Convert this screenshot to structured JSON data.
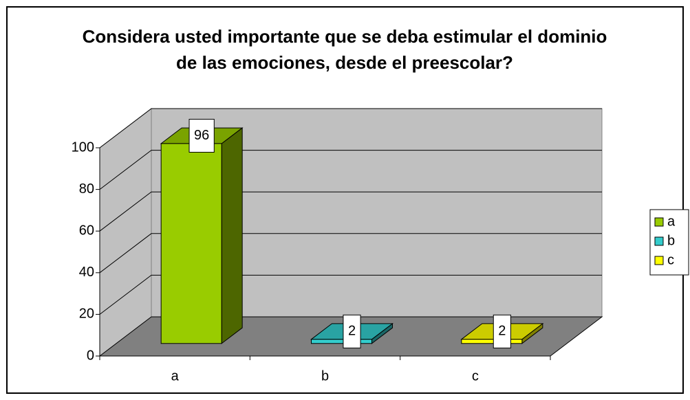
{
  "chart_data": {
    "type": "bar3d",
    "title": "Considera usted importante que se deba estimular el dominio de las emociones, desde el preescolar?",
    "categories": [
      "a",
      "b",
      "c"
    ],
    "values": [
      96,
      2,
      2
    ],
    "colors": [
      "#99cc00",
      "#33cccc",
      "#ffff00"
    ],
    "ylim": [
      0,
      100
    ],
    "yticks": [
      0,
      20,
      40,
      60,
      80,
      100
    ],
    "grid": true,
    "legend": "right"
  }
}
